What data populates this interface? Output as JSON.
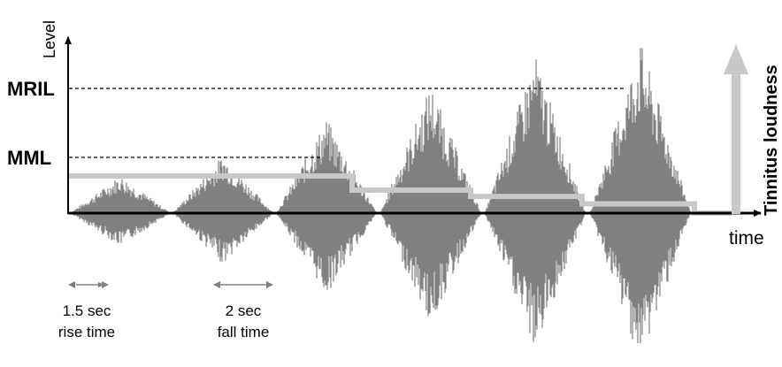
{
  "axes": {
    "y_label": "Level",
    "x_label": "time",
    "right_label": "Tinnitus loudness"
  },
  "levels": {
    "mril": "MRIL",
    "mml": "MML"
  },
  "annotations": {
    "rise_value": "1.5 sec",
    "rise_label": "rise time",
    "fall_value": "2 sec",
    "fall_label": "fall time"
  },
  "colors": {
    "waveform": "#808080",
    "loudness_trace": "#c8c8c8",
    "loudness_arrow": "#c8c8c8",
    "axis": "#000000"
  },
  "stimuli": {
    "count": 6,
    "relative_amplitudes": [
      0.22,
      0.34,
      0.55,
      0.75,
      0.92,
      1.0
    ]
  },
  "loudness_trace": {
    "relative_levels": [
      1.0,
      1.0,
      1.0,
      0.62,
      0.45,
      0.25,
      0.0
    ]
  }
}
